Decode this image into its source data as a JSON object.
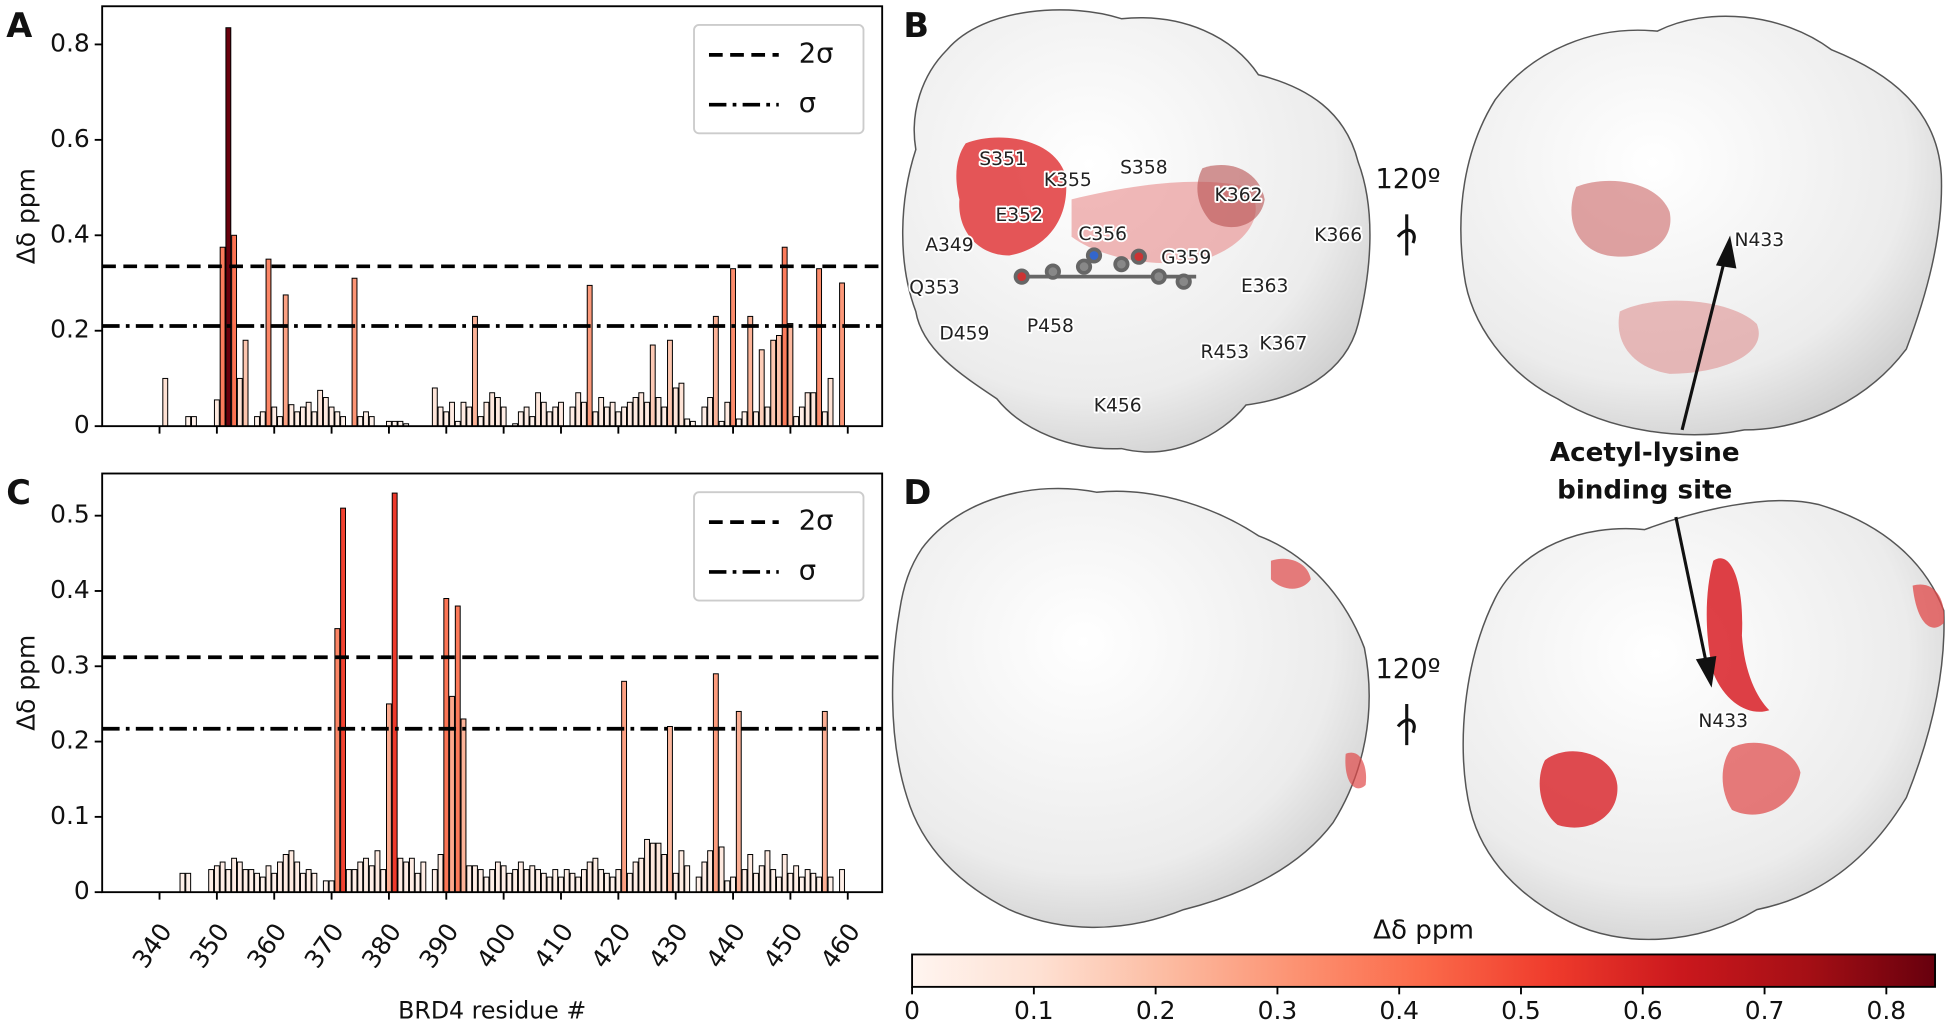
{
  "chart_data": [
    {
      "type": "bar",
      "panel": "A",
      "ylabel": "Δδ ppm",
      "x": [
        341,
        345,
        346,
        350,
        351,
        352,
        353,
        354,
        355,
        357,
        358,
        359,
        360,
        361,
        362,
        363,
        364,
        365,
        366,
        367,
        368,
        369,
        370,
        371,
        372,
        374,
        375,
        376,
        377,
        380,
        381,
        382,
        383,
        388,
        389,
        390,
        391,
        392,
        393,
        394,
        395,
        396,
        397,
        398,
        399,
        400,
        402,
        403,
        404,
        405,
        406,
        407,
        408,
        409,
        410,
        412,
        413,
        414,
        415,
        416,
        417,
        418,
        419,
        420,
        421,
        422,
        423,
        424,
        425,
        426,
        427,
        428,
        429,
        430,
        431,
        432,
        433,
        435,
        436,
        437,
        438,
        439,
        440,
        441,
        442,
        443,
        444,
        445,
        446,
        447,
        448,
        449,
        450,
        451,
        452,
        453,
        454,
        455,
        456,
        457,
        459
      ],
      "values": [
        0.1,
        0.02,
        0.02,
        0.055,
        0.375,
        0.835,
        0.4,
        0.1,
        0.18,
        0.02,
        0.03,
        0.35,
        0.04,
        0.02,
        0.275,
        0.045,
        0.03,
        0.04,
        0.05,
        0.03,
        0.075,
        0.06,
        0.04,
        0.03,
        0.02,
        0.31,
        0.02,
        0.03,
        0.02,
        0.01,
        0.01,
        0.01,
        0.005,
        0.08,
        0.04,
        0.03,
        0.05,
        0.01,
        0.05,
        0.04,
        0.23,
        0.02,
        0.05,
        0.07,
        0.06,
        0.04,
        0.005,
        0.03,
        0.04,
        0.02,
        0.07,
        0.05,
        0.03,
        0.04,
        0.05,
        0.04,
        0.07,
        0.05,
        0.295,
        0.03,
        0.06,
        0.04,
        0.05,
        0.03,
        0.04,
        0.05,
        0.06,
        0.07,
        0.05,
        0.17,
        0.06,
        0.04,
        0.18,
        0.08,
        0.09,
        0.015,
        0.01,
        0.04,
        0.06,
        0.23,
        0.01,
        0.05,
        0.33,
        0.015,
        0.03,
        0.23,
        0.03,
        0.16,
        0.04,
        0.18,
        0.19,
        0.375,
        0.215,
        0.02,
        0.04,
        0.07,
        0.07,
        0.33,
        0.03,
        0.1,
        0.3
      ],
      "xlim": [
        330,
        466
      ],
      "ylim": [
        0,
        0.88
      ],
      "xticks": [
        340,
        350,
        360,
        370,
        380,
        390,
        400,
        410,
        420,
        430,
        440,
        450,
        460
      ],
      "show_xtick_labels": false,
      "yticks": [
        0,
        0.2,
        0.4,
        0.6,
        0.8
      ],
      "hlines": [
        {
          "name": "2σ",
          "value": 0.335,
          "style": "dashed"
        },
        {
          "name": "σ",
          "value": 0.21,
          "style": "dashdot"
        }
      ],
      "legend": "upper right"
    },
    {
      "type": "bar",
      "panel": "C",
      "ylabel": "Δδ ppm",
      "xlabel": "BRD4 residue #",
      "x": [
        344,
        345,
        349,
        350,
        351,
        352,
        353,
        354,
        355,
        356,
        357,
        358,
        359,
        360,
        361,
        362,
        363,
        364,
        365,
        366,
        367,
        369,
        370,
        371,
        372,
        373,
        374,
        375,
        376,
        377,
        378,
        379,
        380,
        381,
        382,
        383,
        384,
        385,
        386,
        388,
        389,
        390,
        391,
        392,
        393,
        394,
        395,
        396,
        397,
        398,
        399,
        400,
        401,
        402,
        403,
        404,
        405,
        406,
        407,
        408,
        409,
        410,
        411,
        412,
        413,
        414,
        415,
        416,
        417,
        418,
        419,
        420,
        421,
        422,
        423,
        424,
        425,
        426,
        427,
        428,
        429,
        430,
        431,
        432,
        434,
        435,
        436,
        437,
        438,
        439,
        440,
        441,
        442,
        443,
        444,
        445,
        446,
        447,
        448,
        449,
        450,
        451,
        452,
        453,
        454,
        455,
        456,
        457,
        459
      ],
      "values": [
        0.025,
        0.025,
        0.03,
        0.035,
        0.04,
        0.03,
        0.045,
        0.04,
        0.03,
        0.03,
        0.025,
        0.02,
        0.035,
        0.025,
        0.04,
        0.05,
        0.055,
        0.04,
        0.025,
        0.03,
        0.025,
        0.015,
        0.015,
        0.35,
        0.51,
        0.03,
        0.03,
        0.04,
        0.045,
        0.035,
        0.055,
        0.03,
        0.25,
        0.53,
        0.045,
        0.04,
        0.045,
        0.025,
        0.04,
        0.03,
        0.05,
        0.39,
        0.26,
        0.38,
        0.23,
        0.035,
        0.035,
        0.03,
        0.02,
        0.03,
        0.04,
        0.035,
        0.025,
        0.03,
        0.04,
        0.03,
        0.035,
        0.03,
        0.025,
        0.02,
        0.03,
        0.02,
        0.03,
        0.025,
        0.02,
        0.03,
        0.04,
        0.045,
        0.03,
        0.025,
        0.02,
        0.03,
        0.28,
        0.025,
        0.04,
        0.045,
        0.07,
        0.065,
        0.065,
        0.05,
        0.22,
        0.025,
        0.055,
        0.035,
        0.02,
        0.04,
        0.055,
        0.29,
        0.06,
        0.015,
        0.02,
        0.24,
        0.03,
        0.05,
        0.025,
        0.035,
        0.055,
        0.03,
        0.02,
        0.05,
        0.025,
        0.035,
        0.02,
        0.03,
        0.025,
        0.02,
        0.24,
        0.02,
        0.03
      ],
      "xlim": [
        330,
        466
      ],
      "ylim": [
        0,
        0.556
      ],
      "xticks": [
        340,
        350,
        360,
        370,
        380,
        390,
        400,
        410,
        420,
        430,
        440,
        450,
        460
      ],
      "show_xtick_labels": true,
      "yticks": [
        0,
        0.1,
        0.2,
        0.3,
        0.4,
        0.5
      ],
      "hlines": [
        {
          "name": "2σ",
          "value": 0.312,
          "style": "dashed"
        },
        {
          "name": "σ",
          "value": 0.217,
          "style": "dashdot"
        }
      ],
      "legend": "upper right"
    },
    {
      "type": "colorbar",
      "label": "Δδ ppm",
      "xlim": [
        0,
        0.84
      ],
      "xticks": [
        0,
        0.1,
        0.2,
        0.3,
        0.4,
        0.5,
        0.6,
        0.7,
        0.8
      ],
      "colormap": [
        "#fff5f0",
        "#fee0d2",
        "#fcbba1",
        "#fc9272",
        "#fb6a4a",
        "#ef3b2c",
        "#cb181d",
        "#a50f15",
        "#67000d"
      ]
    }
  ],
  "panels": {
    "B": {
      "letter": "B",
      "rotation": "120º",
      "labels": [
        "S351",
        "K355",
        "S358",
        "E352",
        "K362",
        "C356",
        "G359",
        "K366",
        "A349",
        "Q353",
        "E363",
        "D459",
        "P458",
        "R453",
        "K367",
        "K456"
      ],
      "site_label": "N433"
    },
    "D": {
      "letter": "D",
      "rotation": "120º",
      "site_label": "N433"
    },
    "annotation": [
      "Acetyl-lysine",
      "binding site"
    ]
  }
}
